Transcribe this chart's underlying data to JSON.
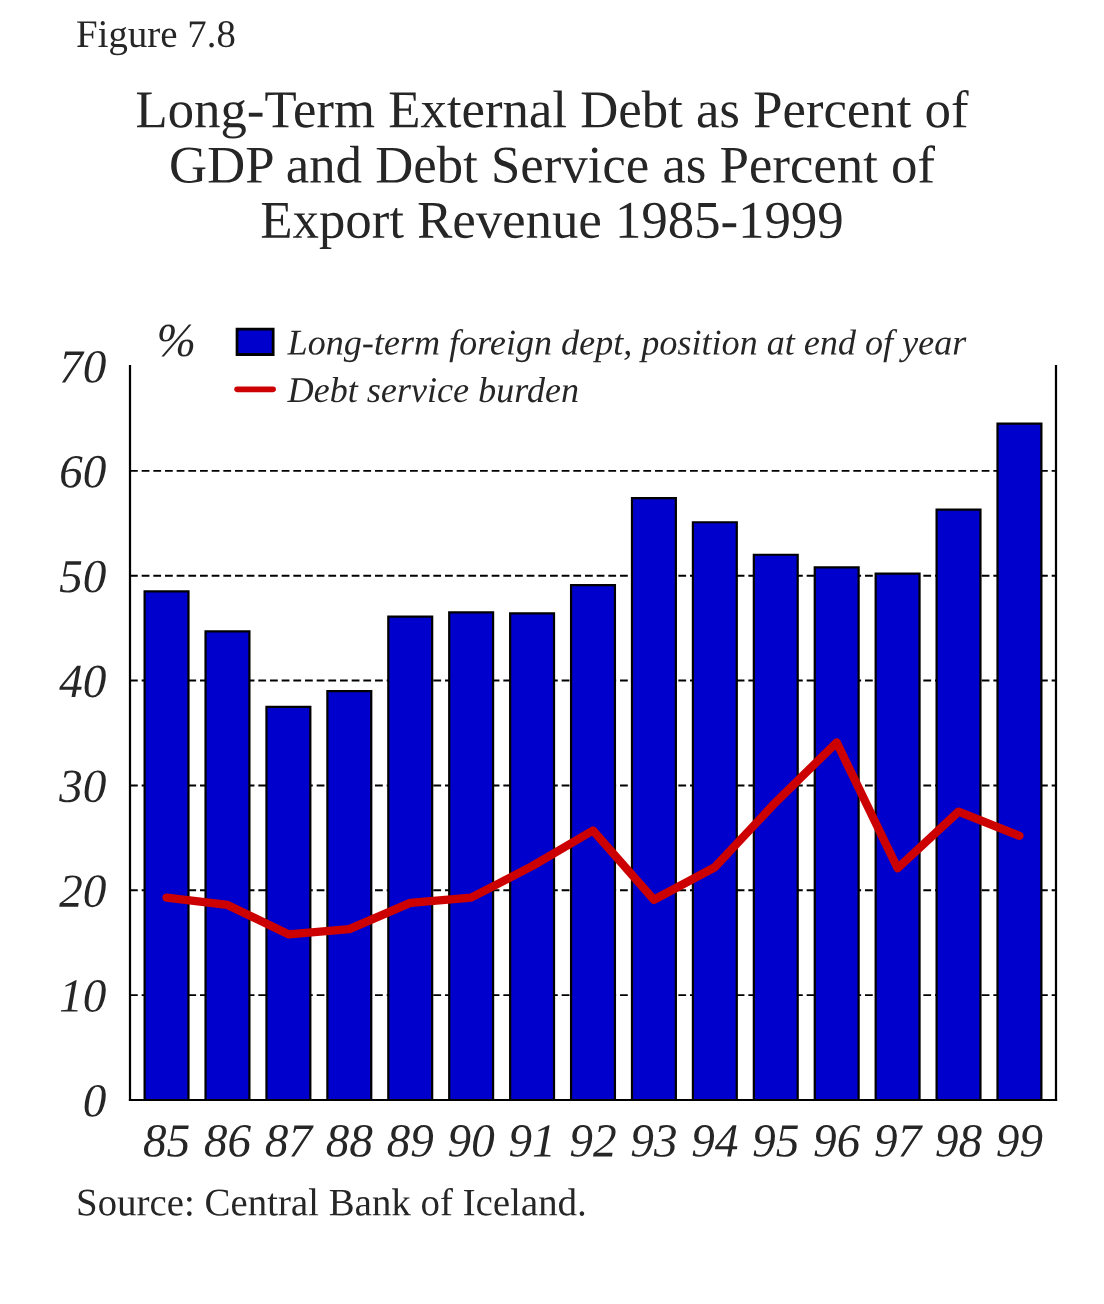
{
  "chart_data": {
    "type": "bar",
    "title": "Long-Term External Debt as Percent of\nGDP and Debt Service as Percent of\nExport Revenue 1985-1999",
    "ylabel": "%",
    "annotations": [
      "Figure 7.8",
      "Source: Central Bank of Iceland."
    ],
    "categories": [
      "85",
      "86",
      "87",
      "88",
      "89",
      "90",
      "91",
      "92",
      "93",
      "94",
      "95",
      "96",
      "97",
      "98",
      "99"
    ],
    "series": [
      {
        "name": "Long-term foreign dept, position at end of year",
        "color": "#0000cc",
        "values": [
          48.5,
          44.7,
          37.5,
          39.0,
          46.1,
          46.5,
          46.4,
          49.1,
          57.4,
          55.1,
          52.0,
          50.8,
          50.2,
          56.3,
          64.5
        ]
      },
      {
        "name": "Debt service burden",
        "type": "line",
        "color": "#cc0000",
        "values": [
          19.3,
          18.6,
          15.8,
          16.3,
          18.8,
          19.3,
          22.3,
          25.7,
          19.1,
          22.2,
          28.4,
          34.1,
          22.1,
          27.5,
          25.2
        ]
      }
    ],
    "ylim": [
      0,
      70
    ],
    "yticks": [
      0,
      10,
      20,
      30,
      40,
      50,
      60,
      70
    ],
    "grid": "y",
    "legend": "top left"
  }
}
